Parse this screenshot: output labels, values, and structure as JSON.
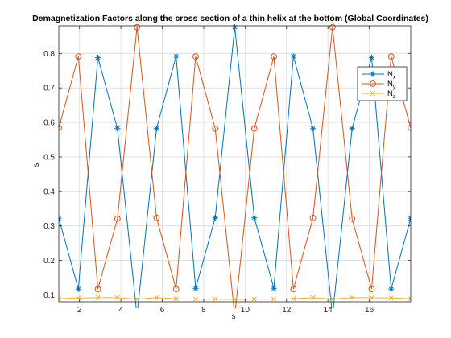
{
  "chart_data": {
    "type": "line",
    "title": "Demagnetization Factors along the cross section of a thin helix at the bottom (Global Coordinates)",
    "xlabel": "s",
    "ylabel": "s",
    "xlim": [
      1,
      18
    ],
    "ylim": [
      0.08,
      0.88
    ],
    "grid": true,
    "legend_position": "top-right",
    "x": [
      1,
      1.944,
      2.889,
      3.833,
      4.778,
      5.722,
      6.667,
      7.611,
      8.556,
      9.5,
      10.444,
      11.389,
      12.333,
      13.278,
      14.222,
      15.167,
      16.111,
      17.056,
      18
    ],
    "xticks": [
      2,
      4,
      6,
      8,
      10,
      12,
      14,
      16
    ],
    "xtick_labels": [
      "2",
      "4",
      "6",
      "8",
      "10",
      "12",
      "14",
      "16"
    ],
    "yticks": [
      0.1,
      0.2,
      0.3,
      0.4,
      0.5,
      0.6,
      0.7,
      0.8
    ],
    "ytick_labels": [
      "0.1",
      "0.2",
      "0.3",
      "0.4",
      "0.5",
      "0.6",
      "0.7",
      "0.8"
    ],
    "series": [
      {
        "name": "N",
        "subscript": "x",
        "color": "#0072BD",
        "marker": "asterisk",
        "values": [
          0.322,
          0.117,
          0.788,
          0.582,
          0.04,
          0.582,
          0.792,
          0.119,
          0.324,
          0.876,
          0.324,
          0.119,
          0.792,
          0.582,
          0.04,
          0.582,
          0.788,
          0.117,
          0.322
        ]
      },
      {
        "name": "N",
        "subscript": "y",
        "color": "#D95319",
        "marker": "circle",
        "values": [
          0.584,
          0.791,
          0.117,
          0.321,
          0.876,
          0.323,
          0.117,
          0.791,
          0.582,
          0.039,
          0.582,
          0.791,
          0.117,
          0.323,
          0.876,
          0.321,
          0.117,
          0.791,
          0.584
        ]
      },
      {
        "name": "N",
        "subscript": "z",
        "color": "#EDB120",
        "marker": "x",
        "values": [
          0.089,
          0.091,
          0.092,
          0.092,
          0.088,
          0.092,
          0.089,
          0.088,
          0.088,
          0.087,
          0.088,
          0.088,
          0.089,
          0.092,
          0.088,
          0.092,
          0.092,
          0.091,
          0.089
        ]
      }
    ]
  }
}
